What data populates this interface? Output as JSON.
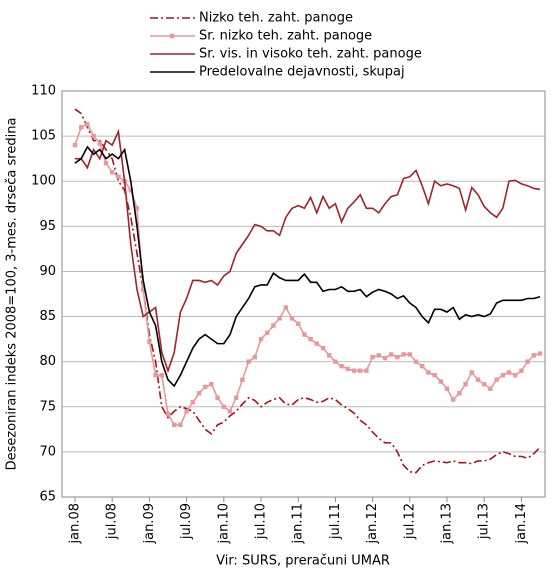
{
  "chart_data": {
    "type": "line",
    "ylabel": "Desezoniran indeks 2008=100, 3-mes. drseča sredina",
    "source": "Vir: SURS, preračuni UMAR",
    "categories": [
      "jan.08",
      null,
      null,
      null,
      null,
      null,
      "jul.08",
      null,
      null,
      null,
      null,
      null,
      "jan.09",
      null,
      null,
      null,
      null,
      null,
      "jul.09",
      null,
      null,
      null,
      null,
      null,
      "jan.10",
      null,
      null,
      null,
      null,
      null,
      "jul.10",
      null,
      null,
      null,
      null,
      null,
      "jan.11",
      null,
      null,
      null,
      null,
      null,
      "jul.11",
      null,
      null,
      null,
      null,
      null,
      "jan.12",
      null,
      null,
      null,
      null,
      null,
      "jul.12",
      null,
      null,
      null,
      null,
      null,
      "jan.13",
      null,
      null,
      null,
      null,
      null,
      "jul.13",
      null,
      null,
      null,
      null,
      null,
      "jan.14",
      null,
      null,
      null
    ],
    "ylim": [
      65,
      110
    ],
    "yticks": [
      65,
      70,
      75,
      80,
      85,
      90,
      95,
      100,
      105,
      110
    ],
    "grid": true,
    "series": [
      {
        "name": "Nizko teh. zaht. panoge",
        "color": "#a3161b",
        "style": "dashdot",
        "values": [
          108,
          107.5,
          106,
          104.5,
          104.5,
          103.5,
          102.5,
          100,
          99,
          96,
          92,
          88,
          83,
          80,
          75,
          73.8,
          74.5,
          75,
          74.8,
          74.5,
          73.5,
          72.5,
          72,
          73,
          73.3,
          74,
          74.5,
          75.3,
          76,
          75.7,
          75,
          75.5,
          75.8,
          76,
          75.3,
          75.2,
          75.8,
          76,
          75.8,
          75.5,
          75.6,
          76,
          75.8,
          75.2,
          74.8,
          74.3,
          73.5,
          73,
          72.2,
          71.5,
          71,
          71,
          70,
          68.5,
          67.8,
          67.7,
          68.5,
          68.8,
          69,
          68.9,
          68.8,
          69,
          68.8,
          68.8,
          68.7,
          69,
          69,
          69.2,
          69.7,
          70,
          69.8,
          69.5,
          69.5,
          69.3,
          69.8,
          70.5
        ]
      },
      {
        "name": "Sr. nizko teh. zaht. panoge",
        "color": "#e8979a",
        "markers": "square",
        "values": [
          104,
          106,
          106.3,
          105,
          104.2,
          102,
          101,
          100.5,
          100,
          99,
          97,
          88,
          82.2,
          78.5,
          78.5,
          74.2,
          73,
          73,
          74.5,
          75.5,
          76.5,
          77.2,
          77.5,
          76,
          75,
          74.5,
          76,
          78,
          80,
          80.5,
          82.5,
          83.2,
          84,
          84.8,
          86,
          84.8,
          84.2,
          83,
          82.5,
          82,
          81.5,
          80.7,
          80,
          79.5,
          79.2,
          79,
          79,
          79,
          80.5,
          80.7,
          80.4,
          80.8,
          80.5,
          80.8,
          80.8,
          80,
          79.5,
          78.8,
          78.5,
          77.8,
          77,
          75.8,
          76.5,
          77.5,
          78.8,
          78,
          77.5,
          77,
          78,
          78.5,
          78.8,
          78.5,
          79,
          80,
          80.7,
          80.9
        ]
      },
      {
        "name": "Sr. vis. in visoko teh. zaht. panoge",
        "color": "#a0242a",
        "values": [
          102.5,
          102.5,
          101.5,
          103.5,
          102.5,
          104.5,
          104,
          105.5,
          100,
          93,
          88,
          85,
          85.5,
          86,
          81,
          79,
          81,
          85.5,
          87,
          89,
          89,
          88.8,
          89,
          88.5,
          89.5,
          90,
          92,
          93,
          94,
          95.2,
          95,
          94.5,
          94.5,
          94,
          96,
          97,
          97.3,
          97,
          98.2,
          96.5,
          98.3,
          97,
          97.5,
          95.5,
          97,
          97.7,
          98.5,
          97,
          97,
          96.5,
          97.5,
          98.3,
          98.5,
          100.3,
          100.5,
          101.2,
          99.5,
          97.5,
          100,
          99.5,
          99.7,
          99.5,
          99.2,
          96.8,
          99.3,
          98.5,
          97.2,
          96.5,
          96,
          97,
          100,
          100.1,
          99.7,
          99.5,
          99.2,
          99.1
        ]
      },
      {
        "name": "Predelovalne dejavnosti, skupaj",
        "color": "#000000",
        "values": [
          102,
          102.5,
          103.8,
          103,
          103.5,
          102.5,
          103,
          102.5,
          103.5,
          100,
          95,
          89,
          85.5,
          84,
          80,
          78,
          77.3,
          78.5,
          80,
          81.5,
          82.5,
          83,
          82.5,
          82,
          82,
          83,
          85,
          86,
          87,
          88.3,
          88.5,
          88.5,
          89.8,
          89.3,
          89,
          89,
          89,
          89.7,
          88.8,
          88.8,
          87.8,
          88,
          88,
          88.3,
          87.8,
          87.8,
          88,
          87.2,
          87.7,
          88,
          87.8,
          87.5,
          87,
          87.3,
          86.5,
          86,
          85,
          84.3,
          85.8,
          85.8,
          85.5,
          86,
          84.7,
          85.2,
          85,
          85.2,
          85,
          85.3,
          86.5,
          86.8,
          86.8,
          86.8,
          86.8,
          87,
          87,
          87.2
        ]
      }
    ]
  }
}
